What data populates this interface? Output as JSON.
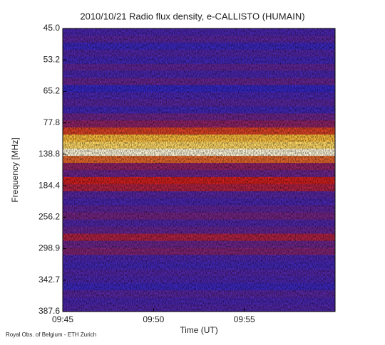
{
  "chart_data": {
    "type": "spectrogram",
    "title": "2010/10/21  Radio flux density, e-CALLISTO (HUMAIN)",
    "y_label": "Frequency [MHz]",
    "x_label": "Time (UT)",
    "footer": "Royal Obs. of Belgium - ETH Zurich",
    "xlim": [
      "09:45",
      "10:00"
    ],
    "xticks": [
      "09:45",
      "09:50",
      "09:55"
    ],
    "yticks": [
      {
        "value": 45,
        "label": "45.0"
      },
      {
        "value": 53.2,
        "label": "53.2"
      },
      {
        "value": 65.2,
        "label": "65.2"
      },
      {
        "value": 77.8,
        "label": "77.8"
      },
      {
        "value": 138.8,
        "label": "138.8"
      },
      {
        "value": 184.4,
        "label": "184.4"
      },
      {
        "value": 256.2,
        "label": "256.2"
      },
      {
        "value": 298.9,
        "label": "298.9"
      },
      {
        "value": 342.7,
        "label": "342.7"
      },
      {
        "value": 387.6,
        "label": "387.6"
      }
    ],
    "zlim": [
      0,
      100
    ],
    "colormap": [
      "#000018",
      "#2828d0",
      "#d02020",
      "#ffd040",
      "#ffffff"
    ],
    "values": [
      30,
      32,
      28,
      31,
      29,
      33,
      30,
      34,
      27,
      30,
      32,
      29,
      35,
      40,
      55,
      72,
      80,
      95,
      60,
      40,
      35,
      50,
      45,
      32,
      30,
      33,
      36,
      31,
      34,
      45,
      35,
      38,
      30,
      29,
      31,
      30,
      28,
      32,
      30,
      31
    ]
  }
}
